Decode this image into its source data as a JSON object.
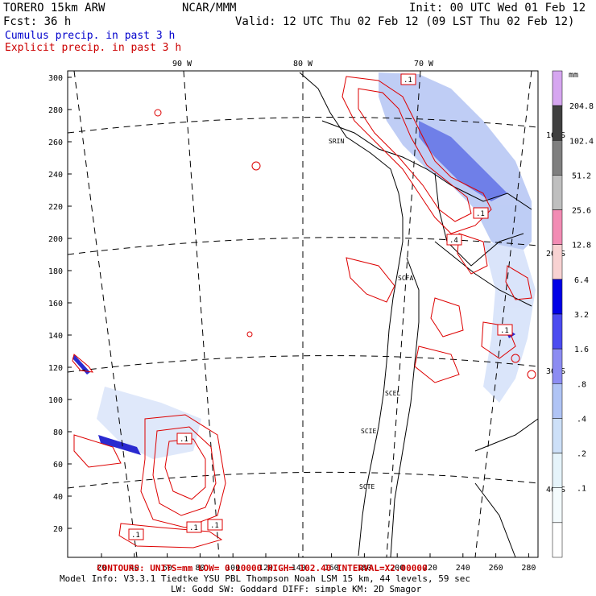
{
  "header": {
    "model": "TORERO  15km ARW",
    "org": "NCAR/MMM",
    "init": "Init: 00 UTC Wed 01 Feb 12",
    "fcst": "Fcst:   36 h",
    "valid": "Valid: 12 UTC Thu 02 Feb 12 (09 LST Thu 02 Feb 12)"
  },
  "legend": {
    "cumulus": "Cumulus precip. in past 3 h",
    "explicit": "Explicit precip. in past 3 h",
    "cumulus_color": "#0000cc",
    "explicit_color": "#cc0000"
  },
  "map": {
    "y_ticks": [
      "300",
      "280",
      "260",
      "240",
      "220",
      "200",
      "180",
      "160",
      "140",
      "120",
      "100",
      "80",
      "60",
      "40",
      "20"
    ],
    "x_ticks": [
      "20",
      "40",
      "60",
      "80",
      "100",
      "120",
      "140",
      "160",
      "180",
      "200",
      "220",
      "240",
      "260",
      "280"
    ],
    "lon_labels": [
      "90 W",
      "80 W",
      "70 W"
    ],
    "lat_labels": [
      "10 S",
      "20 S",
      "30 S",
      "40 S"
    ],
    "cities": [
      "SRIN",
      "SCFA",
      "SCEL",
      "SCIE",
      "SCTE"
    ],
    "contour_labels": [
      ".1",
      ".1",
      ".4",
      ".1",
      ".1",
      ".1",
      ".1",
      ".1"
    ],
    "coast_color": "#000000",
    "contour_color": "#dd0000"
  },
  "colorbar": {
    "unit": "mm",
    "levels": [
      "204.8",
      "102.4",
      "51.2",
      "25.6",
      "12.8",
      "6.4",
      "3.2",
      "1.6",
      ".8",
      ".4",
      ".2",
      ".1"
    ],
    "colors": [
      "#d6a6f0",
      "#404040",
      "#7f7f7f",
      "#bfbfbf",
      "#f28cb4",
      "#f8d2d2",
      "#0000e6",
      "#4b4bf0",
      "#8c8cf2",
      "#b0c4f5",
      "#cde0f8",
      "#e6f4fb",
      "#f4fbfd",
      "#ffffff"
    ]
  },
  "footer": {
    "contours": "CONTOURS:  UNITS=mm   LOW= 0.10000    HIGH= 102.40     INTERVAL=X2.00000",
    "model_info": "Model Info: V3.3.1    Tiedtke YSU PBL  Thompson    Noah LSM  15 km,    44 levels,    59 sec",
    "model_info2": "LW: Godd SW: Goddard DIFF: simple KM: 2D Smagor"
  }
}
